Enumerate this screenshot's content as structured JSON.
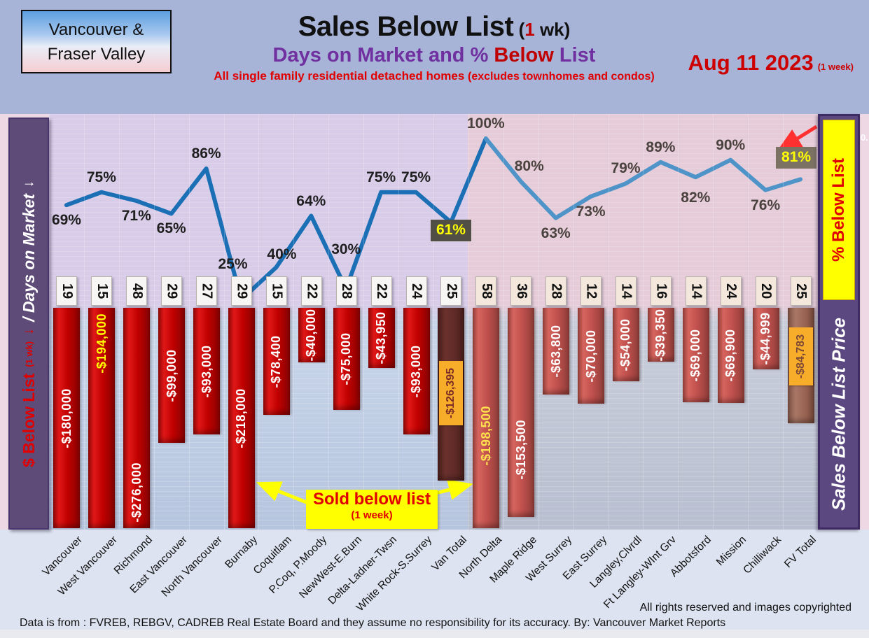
{
  "header": {
    "region_line1": "Vancouver &",
    "region_line2": "Fraser Valley"
  },
  "title": {
    "main": "Sales Below List",
    "paren_open": " (",
    "paren_one": "1",
    "paren_rest": " wk)",
    "subtitle_purple": "Days on Market and % ",
    "subtitle_red": "Below",
    "subtitle_purple2": " List",
    "tagline": "All single family residential detached homes ",
    "tagline_paren": "(excludes townhomes and condos)",
    "date": "Aug 11  2023",
    "date_note": "(1 week)"
  },
  "sidebar_left": {
    "red": "$ Below List",
    "red_small": "(1 wk)",
    "arrow": "↓",
    "white": "/ Days on Market"
  },
  "sidebar_right": {
    "yellow_label": "% Below List",
    "white_label": "Sales Below List Price"
  },
  "callout": {
    "line1": "Sold below list",
    "line2": "(1 week)"
  },
  "axis_fragment": "0.",
  "footer": {
    "rights": "All rights reserved and  images copyrighted",
    "source": "Data is from : FVREB, REBGV, CADREB Real Estate Board and they assume no responsibility for its accuracy. By: Vancouver Market Reports"
  },
  "chart_data": {
    "type": "combo: bar ($ below list) + line (% below list)",
    "categories": [
      "Vancouver",
      "West Vancouver",
      "Richmond",
      "East Vancouver",
      "North Vancouver",
      "Burnaby",
      "Coquitlam",
      "P.Coq, P.Moody",
      "NewWest-E.Burn",
      "Delta-Ladner-Twsn",
      "White Rock-S.Surrey",
      "Van Total",
      "North Delta",
      "Maple Ridge",
      "West Surrey",
      "East Surrey",
      "Langley,Clvrdl",
      "Ft Langley-WInt Grv",
      "Abbotsford",
      "Mission",
      "Chilliwack",
      "FV Total"
    ],
    "days_on_market": [
      19,
      15,
      48,
      29,
      27,
      29,
      15,
      22,
      28,
      22,
      24,
      25,
      58,
      36,
      28,
      12,
      14,
      16,
      14,
      24,
      20,
      25
    ],
    "pct_below_list": [
      69,
      75,
      71,
      65,
      86,
      25,
      40,
      64,
      30,
      75,
      75,
      61,
      100,
      80,
      63,
      73,
      79,
      89,
      82,
      90,
      76,
      81
    ],
    "dollars_below_list": [
      -180000,
      -194000,
      -276000,
      -99000,
      -93000,
      -218000,
      -78400,
      -40000,
      -75000,
      -43950,
      -93000,
      -126395,
      -198500,
      -153500,
      -63800,
      -70000,
      -54000,
      -39350,
      -69000,
      -69900,
      -44999,
      -84783
    ],
    "dollar_labels": [
      "-$180,000",
      "-$194,000",
      "-$276,000",
      "-$99,000",
      "-$93,000",
      "-$218,000",
      "-$78,400",
      "-$40,000",
      "-$75,000",
      "-$43,950",
      "-$93,000",
      "-$126,395",
      "-$198,500",
      "-$153,500",
      "-$63,800",
      "-$70,000",
      "-$54,000",
      "-$39,350",
      "-$69,000",
      "-$69,900",
      "-$44,999",
      "-$84,783"
    ],
    "van_total_index": 11,
    "fv_total_index": 21,
    "legend": {
      "line": "% Below List",
      "bar": "$ Below List (1 wk)",
      "boxes": "Days on Market"
    },
    "colors": {
      "line_left": "#1b6fb5",
      "line_right": "#4e94c9",
      "bar_left": "#c00000",
      "bar_right": "#c0504d",
      "bar_van_total": "#5d2927",
      "bar_fv_total": "#96604f",
      "pct_box_61": "#514e46",
      "pct_box_81": "#7b7263",
      "gold_label": "#f7ad2a",
      "highlight_yellow": "#ffff00",
      "pct_text_left": "#1f1f1f",
      "pct_text_right": "#4a423e",
      "bar_label_default": "#ffffff",
      "bar_label_west_van": "#ffff00",
      "bar_label_north_delta": "#ffe34d",
      "gold_text_van": "#7b2c25",
      "gold_text_fv": "#7d4937"
    }
  }
}
